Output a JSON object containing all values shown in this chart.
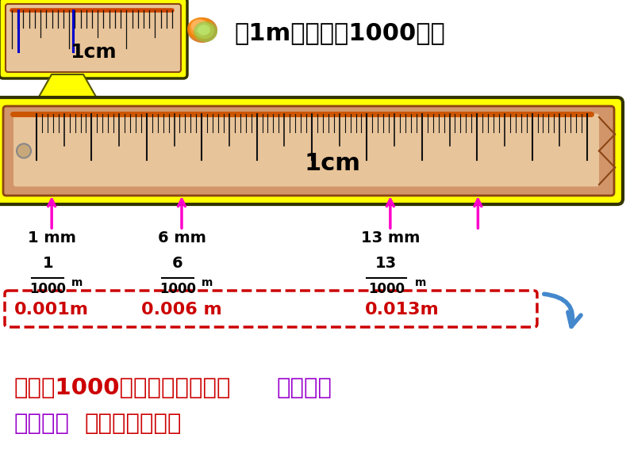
{
  "bg_color": "#FFFFFF",
  "title_text": "把1m平均分成1000份。",
  "title_fontsize": 22,
  "title_color": "#000000",
  "mm_labels": [
    "1 mm",
    "6 mm",
    "13 mm"
  ],
  "frac_num": [
    "1",
    "6",
    "13"
  ],
  "frac_den": [
    "1000",
    "1000",
    "1000"
  ],
  "decimal_vals": [
    "0.001m",
    "0.006 m",
    "0.013m"
  ],
  "decimal_color": "#CC0000",
  "mm_color": "#000000",
  "frac_color": "#000000",
  "bottom_line1_parts": [
    [
      "分母是1000的分数，可以写成",
      "#CC0000"
    ],
    [
      "三位小数",
      "#9900CC"
    ]
  ],
  "bottom_line2_parts": [
    [
      "三位小数",
      "#9900CC"
    ],
    [
      "表示千分之几。",
      "#CC0000"
    ]
  ]
}
